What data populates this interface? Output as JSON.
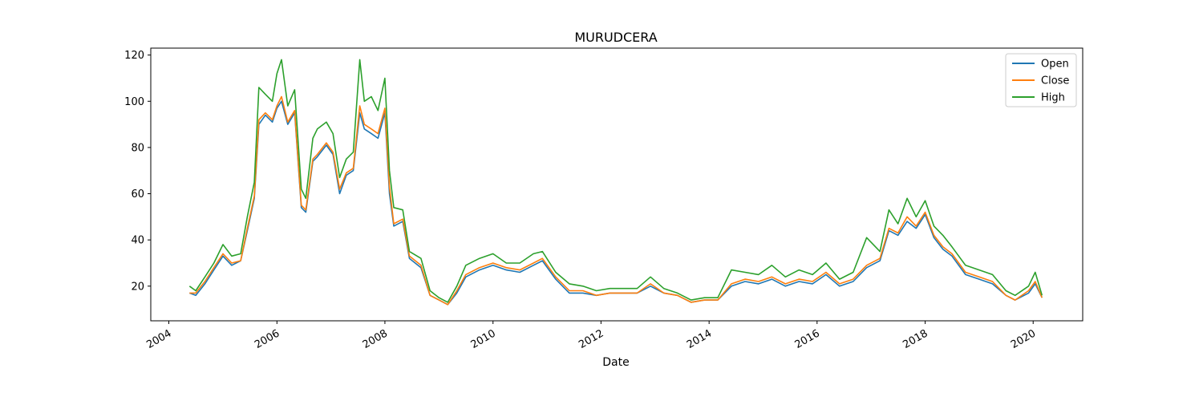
{
  "chart_data": {
    "type": "line",
    "title": "MURUDCERA",
    "xlabel": "Date",
    "ylabel": "",
    "xlim": [
      "2003-09-01",
      "2020-12-01"
    ],
    "ylim": [
      5,
      123
    ],
    "x_ticks": [
      "2004",
      "2006",
      "2008",
      "2010",
      "2012",
      "2014",
      "2016",
      "2018",
      "2020"
    ],
    "y_ticks": [
      20,
      40,
      60,
      80,
      100,
      120
    ],
    "grid": false,
    "legend_position": "top-right",
    "series": [
      {
        "name": "Open",
        "color": "#1f77b4",
        "points": [
          [
            "2004-05-20",
            17
          ],
          [
            "2004-07-01",
            16
          ],
          [
            "2004-09-01",
            21
          ],
          [
            "2004-11-01",
            27
          ],
          [
            "2005-01-01",
            33
          ],
          [
            "2005-03-01",
            29
          ],
          [
            "2005-05-01",
            31
          ],
          [
            "2005-06-15",
            44
          ],
          [
            "2005-08-01",
            58
          ],
          [
            "2005-09-01",
            90
          ],
          [
            "2005-10-15",
            94
          ],
          [
            "2005-12-01",
            91
          ],
          [
            "2006-01-01",
            97
          ],
          [
            "2006-02-01",
            100
          ],
          [
            "2006-03-15",
            90
          ],
          [
            "2006-05-01",
            95
          ],
          [
            "2006-06-15",
            54
          ],
          [
            "2006-07-15",
            52
          ],
          [
            "2006-09-01",
            74
          ],
          [
            "2006-10-01",
            76
          ],
          [
            "2006-12-01",
            81
          ],
          [
            "2007-01-15",
            77
          ],
          [
            "2007-03-01",
            60
          ],
          [
            "2007-04-15",
            68
          ],
          [
            "2007-06-01",
            70
          ],
          [
            "2007-07-15",
            95
          ],
          [
            "2007-08-15",
            88
          ],
          [
            "2007-10-01",
            86
          ],
          [
            "2007-11-15",
            84
          ],
          [
            "2008-01-01",
            95
          ],
          [
            "2008-02-01",
            60
          ],
          [
            "2008-03-01",
            46
          ],
          [
            "2008-05-01",
            48
          ],
          [
            "2008-06-15",
            32
          ],
          [
            "2008-09-01",
            28
          ],
          [
            "2008-11-01",
            16
          ],
          [
            "2009-01-01",
            14
          ],
          [
            "2009-03-01",
            12
          ],
          [
            "2009-05-01",
            17
          ],
          [
            "2009-07-01",
            24
          ],
          [
            "2009-10-01",
            27
          ],
          [
            "2010-01-01",
            29
          ],
          [
            "2010-04-01",
            27
          ],
          [
            "2010-07-01",
            26
          ],
          [
            "2010-10-01",
            29
          ],
          [
            "2010-12-01",
            31
          ],
          [
            "2011-03-01",
            23
          ],
          [
            "2011-06-01",
            17
          ],
          [
            "2011-09-01",
            17
          ],
          [
            "2011-12-01",
            16
          ],
          [
            "2012-03-01",
            17
          ],
          [
            "2012-06-01",
            17
          ],
          [
            "2012-09-01",
            17
          ],
          [
            "2012-12-01",
            20
          ],
          [
            "2013-03-01",
            17
          ],
          [
            "2013-06-01",
            16
          ],
          [
            "2013-09-01",
            13
          ],
          [
            "2013-12-01",
            14
          ],
          [
            "2014-03-01",
            14
          ],
          [
            "2014-06-01",
            20
          ],
          [
            "2014-09-01",
            22
          ],
          [
            "2014-12-01",
            21
          ],
          [
            "2015-03-01",
            23
          ],
          [
            "2015-06-01",
            20
          ],
          [
            "2015-09-01",
            22
          ],
          [
            "2015-12-01",
            21
          ],
          [
            "2016-03-01",
            25
          ],
          [
            "2016-06-01",
            20
          ],
          [
            "2016-09-01",
            22
          ],
          [
            "2016-12-01",
            28
          ],
          [
            "2017-03-01",
            31
          ],
          [
            "2017-05-01",
            44
          ],
          [
            "2017-07-01",
            42
          ],
          [
            "2017-09-01",
            48
          ],
          [
            "2017-11-01",
            45
          ],
          [
            "2018-01-01",
            51
          ],
          [
            "2018-03-01",
            41
          ],
          [
            "2018-05-01",
            36
          ],
          [
            "2018-07-01",
            33
          ],
          [
            "2018-10-01",
            25
          ],
          [
            "2019-01-01",
            23
          ],
          [
            "2019-04-01",
            21
          ],
          [
            "2019-07-01",
            16
          ],
          [
            "2019-09-01",
            14
          ],
          [
            "2019-12-01",
            17
          ],
          [
            "2020-01-15",
            21
          ],
          [
            "2020-03-01",
            15
          ]
        ]
      },
      {
        "name": "Close",
        "color": "#ff7f0e",
        "points": [
          [
            "2004-05-20",
            17
          ],
          [
            "2004-07-01",
            17
          ],
          [
            "2004-09-01",
            22
          ],
          [
            "2004-11-01",
            28
          ],
          [
            "2005-01-01",
            34
          ],
          [
            "2005-03-01",
            30
          ],
          [
            "2005-05-01",
            31
          ],
          [
            "2005-06-15",
            45
          ],
          [
            "2005-08-01",
            59
          ],
          [
            "2005-09-01",
            92
          ],
          [
            "2005-10-15",
            95
          ],
          [
            "2005-12-01",
            92
          ],
          [
            "2006-01-01",
            98
          ],
          [
            "2006-02-01",
            102
          ],
          [
            "2006-03-15",
            91
          ],
          [
            "2006-05-01",
            96
          ],
          [
            "2006-06-15",
            55
          ],
          [
            "2006-07-15",
            53
          ],
          [
            "2006-09-01",
            75
          ],
          [
            "2006-10-01",
            77
          ],
          [
            "2006-12-01",
            82
          ],
          [
            "2007-01-15",
            78
          ],
          [
            "2007-03-01",
            62
          ],
          [
            "2007-04-15",
            69
          ],
          [
            "2007-06-01",
            71
          ],
          [
            "2007-07-15",
            98
          ],
          [
            "2007-08-15",
            90
          ],
          [
            "2007-10-01",
            88
          ],
          [
            "2007-11-15",
            86
          ],
          [
            "2008-01-01",
            97
          ],
          [
            "2008-02-01",
            63
          ],
          [
            "2008-03-01",
            47
          ],
          [
            "2008-05-01",
            49
          ],
          [
            "2008-06-15",
            33
          ],
          [
            "2008-09-01",
            29
          ],
          [
            "2008-11-01",
            16
          ],
          [
            "2009-01-01",
            14
          ],
          [
            "2009-03-01",
            12
          ],
          [
            "2009-05-01",
            18
          ],
          [
            "2009-07-01",
            25
          ],
          [
            "2009-10-01",
            28
          ],
          [
            "2010-01-01",
            30
          ],
          [
            "2010-04-01",
            28
          ],
          [
            "2010-07-01",
            27
          ],
          [
            "2010-10-01",
            30
          ],
          [
            "2010-12-01",
            32
          ],
          [
            "2011-03-01",
            24
          ],
          [
            "2011-06-01",
            18
          ],
          [
            "2011-09-01",
            18
          ],
          [
            "2011-12-01",
            16
          ],
          [
            "2012-03-01",
            17
          ],
          [
            "2012-06-01",
            17
          ],
          [
            "2012-09-01",
            17
          ],
          [
            "2012-12-01",
            21
          ],
          [
            "2013-03-01",
            17
          ],
          [
            "2013-06-01",
            16
          ],
          [
            "2013-09-01",
            13
          ],
          [
            "2013-12-01",
            14
          ],
          [
            "2014-03-01",
            14
          ],
          [
            "2014-06-01",
            21
          ],
          [
            "2014-09-01",
            23
          ],
          [
            "2014-12-01",
            22
          ],
          [
            "2015-03-01",
            24
          ],
          [
            "2015-06-01",
            21
          ],
          [
            "2015-09-01",
            23
          ],
          [
            "2015-12-01",
            22
          ],
          [
            "2016-03-01",
            26
          ],
          [
            "2016-06-01",
            21
          ],
          [
            "2016-09-01",
            23
          ],
          [
            "2016-12-01",
            29
          ],
          [
            "2017-03-01",
            32
          ],
          [
            "2017-05-01",
            45
          ],
          [
            "2017-07-01",
            43
          ],
          [
            "2017-09-01",
            50
          ],
          [
            "2017-11-01",
            46
          ],
          [
            "2018-01-01",
            52
          ],
          [
            "2018-03-01",
            42
          ],
          [
            "2018-05-01",
            37
          ],
          [
            "2018-07-01",
            34
          ],
          [
            "2018-10-01",
            26
          ],
          [
            "2019-01-01",
            24
          ],
          [
            "2019-04-01",
            22
          ],
          [
            "2019-07-01",
            16
          ],
          [
            "2019-09-01",
            14
          ],
          [
            "2019-12-01",
            18
          ],
          [
            "2020-01-15",
            22
          ],
          [
            "2020-03-01",
            15
          ]
        ]
      },
      {
        "name": "High",
        "color": "#2ca02c",
        "points": [
          [
            "2004-05-20",
            20
          ],
          [
            "2004-07-01",
            18
          ],
          [
            "2004-09-01",
            24
          ],
          [
            "2004-11-01",
            30
          ],
          [
            "2005-01-01",
            38
          ],
          [
            "2005-03-01",
            33
          ],
          [
            "2005-05-01",
            34
          ],
          [
            "2005-06-15",
            50
          ],
          [
            "2005-08-01",
            65
          ],
          [
            "2005-09-01",
            106
          ],
          [
            "2005-10-15",
            103
          ],
          [
            "2005-12-01",
            100
          ],
          [
            "2006-01-01",
            112
          ],
          [
            "2006-02-01",
            118
          ],
          [
            "2006-03-15",
            98
          ],
          [
            "2006-05-01",
            105
          ],
          [
            "2006-06-15",
            62
          ],
          [
            "2006-07-15",
            58
          ],
          [
            "2006-09-01",
            84
          ],
          [
            "2006-10-01",
            88
          ],
          [
            "2006-12-01",
            91
          ],
          [
            "2007-01-15",
            86
          ],
          [
            "2007-03-01",
            67
          ],
          [
            "2007-04-15",
            75
          ],
          [
            "2007-06-01",
            78
          ],
          [
            "2007-07-15",
            118
          ],
          [
            "2007-08-15",
            100
          ],
          [
            "2007-10-01",
            102
          ],
          [
            "2007-11-15",
            96
          ],
          [
            "2008-01-01",
            110
          ],
          [
            "2008-02-01",
            70
          ],
          [
            "2008-03-01",
            54
          ],
          [
            "2008-05-01",
            53
          ],
          [
            "2008-06-15",
            35
          ],
          [
            "2008-09-01",
            32
          ],
          [
            "2008-11-01",
            18
          ],
          [
            "2009-01-01",
            15
          ],
          [
            "2009-03-01",
            13
          ],
          [
            "2009-05-01",
            20
          ],
          [
            "2009-07-01",
            29
          ],
          [
            "2009-10-01",
            32
          ],
          [
            "2010-01-01",
            34
          ],
          [
            "2010-04-01",
            30
          ],
          [
            "2010-07-01",
            30
          ],
          [
            "2010-10-01",
            34
          ],
          [
            "2010-12-01",
            35
          ],
          [
            "2011-03-01",
            26
          ],
          [
            "2011-06-01",
            21
          ],
          [
            "2011-09-01",
            20
          ],
          [
            "2011-12-01",
            18
          ],
          [
            "2012-03-01",
            19
          ],
          [
            "2012-06-01",
            19
          ],
          [
            "2012-09-01",
            19
          ],
          [
            "2012-12-01",
            24
          ],
          [
            "2013-03-01",
            19
          ],
          [
            "2013-06-01",
            17
          ],
          [
            "2013-09-01",
            14
          ],
          [
            "2013-12-01",
            15
          ],
          [
            "2014-03-01",
            15
          ],
          [
            "2014-06-01",
            27
          ],
          [
            "2014-09-01",
            26
          ],
          [
            "2014-12-01",
            25
          ],
          [
            "2015-03-01",
            29
          ],
          [
            "2015-06-01",
            24
          ],
          [
            "2015-09-01",
            27
          ],
          [
            "2015-12-01",
            25
          ],
          [
            "2016-03-01",
            30
          ],
          [
            "2016-06-01",
            23
          ],
          [
            "2016-09-01",
            26
          ],
          [
            "2016-12-01",
            41
          ],
          [
            "2017-03-01",
            35
          ],
          [
            "2017-05-01",
            53
          ],
          [
            "2017-07-01",
            47
          ],
          [
            "2017-09-01",
            58
          ],
          [
            "2017-11-01",
            50
          ],
          [
            "2018-01-01",
            57
          ],
          [
            "2018-03-01",
            46
          ],
          [
            "2018-05-01",
            42
          ],
          [
            "2018-07-01",
            37
          ],
          [
            "2018-10-01",
            29
          ],
          [
            "2019-01-01",
            27
          ],
          [
            "2019-04-01",
            25
          ],
          [
            "2019-07-01",
            18
          ],
          [
            "2019-09-01",
            16
          ],
          [
            "2019-12-01",
            20
          ],
          [
            "2020-01-15",
            26
          ],
          [
            "2020-03-01",
            16
          ]
        ]
      }
    ]
  }
}
